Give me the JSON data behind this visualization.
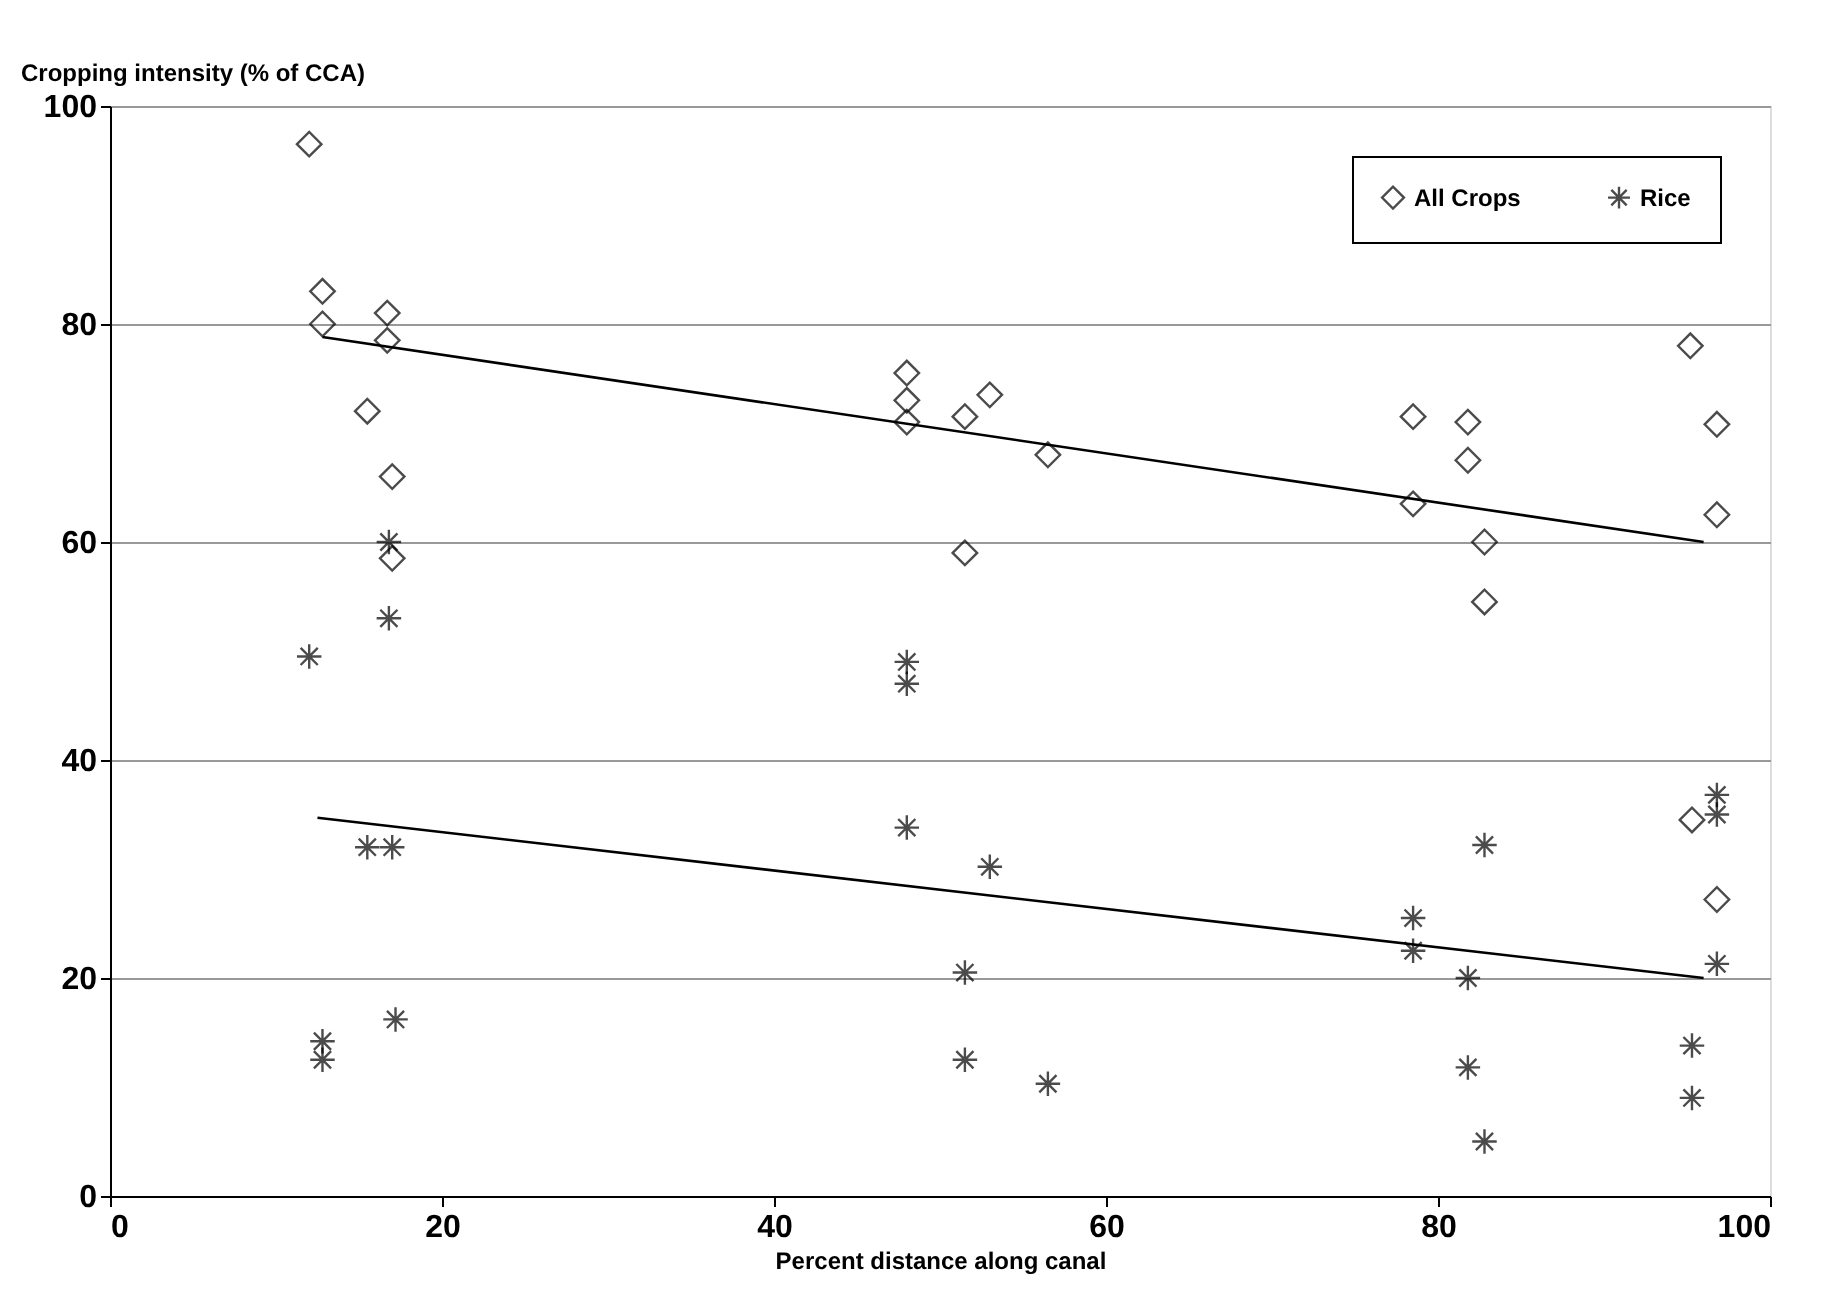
{
  "chart_data": {
    "type": "scatter",
    "xlabel": "Percent distance along canal",
    "ylabel": "Cropping intensity (% of CCA)",
    "xlim": [
      0,
      100
    ],
    "xticks": [
      0,
      20,
      40,
      60,
      80,
      100
    ],
    "ylim": [
      0,
      100
    ],
    "yticks": [
      0,
      20,
      40,
      60,
      80,
      100
    ],
    "grid": "y",
    "legend": "top right",
    "series": [
      {
        "name": "All Crops",
        "marker": "diamond",
        "color": "#000000",
        "x": [
          12,
          12.8,
          12.8,
          16.7,
          16.7,
          15.5,
          17,
          17,
          48,
          48,
          48,
          51.5,
          53,
          56.5,
          51.5,
          78.5,
          78.5,
          81.8,
          81.8,
          82.8,
          82.8,
          95.2,
          96.8,
          96.8,
          95.3,
          96.8
        ],
        "values": [
          96.5,
          83,
          80,
          81,
          78.5,
          72,
          66,
          58.5,
          75.5,
          73,
          71,
          71.5,
          73.5,
          68,
          59,
          71.5,
          63.5,
          71,
          67.5,
          60,
          54.5,
          78,
          70.8,
          62.5,
          34.5,
          27.2
        ]
      },
      {
        "name": "Rice",
        "marker": "cross",
        "color": "#000000",
        "x": [
          12,
          16.8,
          16.8,
          15.5,
          17,
          12.8,
          12.8,
          17.2,
          48,
          48,
          48,
          53,
          51.5,
          51.5,
          56.5,
          78.5,
          78.5,
          81.8,
          82.8,
          81.8,
          82.8,
          96.8,
          96.8,
          96.8,
          95.3,
          95.3
        ],
        "values": [
          49.5,
          60,
          53,
          32,
          32,
          14.2,
          12.5,
          16.2,
          49,
          47,
          33.8,
          30.2,
          20.5,
          12.5,
          10.3,
          25.5,
          22.5,
          20,
          32.2,
          11.8,
          5,
          36.8,
          35,
          21.3,
          13.8,
          9
        ]
      },
      {
        "type": "line",
        "marker": "none",
        "line_style": "solid",
        "color": "#000000",
        "x": [
          12.8,
          96
        ],
        "values": [
          78.8,
          60
        ]
      },
      {
        "type": "line",
        "marker": "none",
        "line_style": "solid",
        "color": "#000000",
        "x": [
          12.5,
          96
        ],
        "values": [
          34.7,
          20
        ]
      }
    ]
  }
}
